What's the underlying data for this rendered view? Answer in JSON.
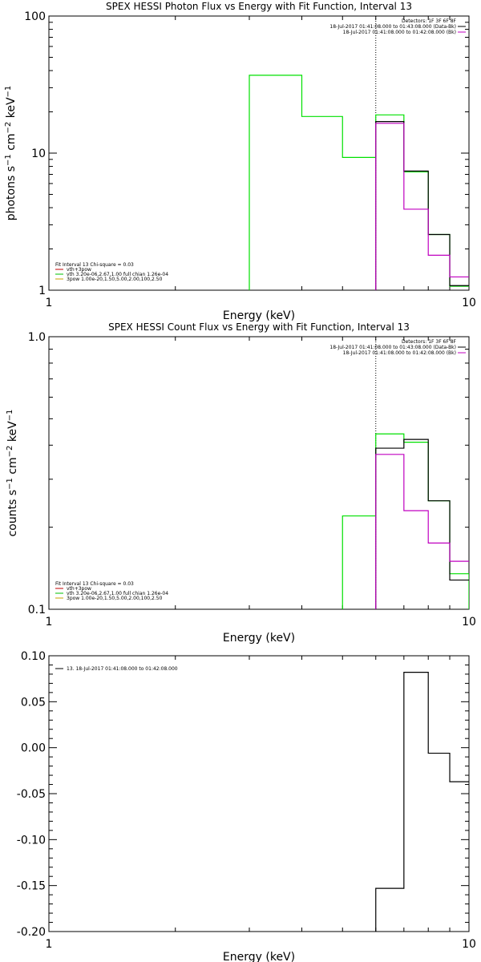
{
  "chart_data": [
    {
      "type": "line",
      "title": "SPEX HESSI Photon Flux vs Energy with Fit Function, Interval 13",
      "xlabel": "Energy (keV)",
      "ylabel_parts": [
        "photons s",
        "−1",
        " cm",
        "−2",
        " keV",
        "−1"
      ],
      "xscale": "log",
      "yscale": "log",
      "xlim": [
        1,
        10
      ],
      "ylim": [
        1,
        100
      ],
      "xticks": [
        {
          "v": 1,
          "label": "1"
        },
        {
          "v": 10,
          "label": "10"
        }
      ],
      "yticks": [
        {
          "v": 1,
          "label": "1"
        },
        {
          "v": 10,
          "label": "10"
        },
        {
          "v": 100,
          "label": "100"
        }
      ],
      "vline": 6.0,
      "legend_right": [
        {
          "text": "Detectors: 1F 3F 6F 8F",
          "color": ""
        },
        {
          "text": "18-Jul-2017 01:41:08.000 to 01:43:08.000 (Data-Bk)",
          "color": "#000000"
        },
        {
          "text": "18-Jul-2017 01:41:08.000 to 01:42:08.000 (Bk)",
          "color": "#c000c0"
        }
      ],
      "legend_left": [
        {
          "text": "Fit Interval 13   Chi-square = 0.03",
          "color": ""
        },
        {
          "text": "vth+3pow",
          "color": "#c00000"
        },
        {
          "text": "vth 3.20e-06,2.67,1.00  full chian 1.26e-04",
          "color": "#00c000"
        },
        {
          "text": "3pow 1.00e-20,1.50,5.00,2.00,100,2.50",
          "color": "#c8a000"
        }
      ],
      "series": [
        {
          "color": "#00e000",
          "edges": [
            3,
            4,
            5,
            6,
            7,
            8,
            9,
            10
          ],
          "values": [
            37,
            18.5,
            9.3,
            19,
            7.3,
            2.55,
            1.07
          ],
          "dropStart": true,
          "dropEnd": false
        },
        {
          "color": "#000000",
          "edges": [
            6,
            7,
            8,
            9,
            10
          ],
          "values": [
            17,
            7.4,
            2.55,
            1.08
          ],
          "dropStart": true,
          "dropEnd": false
        },
        {
          "color": "#c000c0",
          "edges": [
            6,
            7,
            8,
            9,
            10
          ],
          "values": [
            16.5,
            3.9,
            1.8,
            1.25
          ],
          "dropStart": true,
          "dropEnd": false
        }
      ]
    },
    {
      "type": "line",
      "title": "SPEX HESSI Count Flux vs Energy with Fit Function, Interval 13",
      "xlabel": "Energy (keV)",
      "ylabel_parts": [
        "counts s",
        "−1",
        " cm",
        "−2",
        " keV",
        "−1"
      ],
      "xscale": "log",
      "yscale": "log",
      "xlim": [
        1,
        10
      ],
      "ylim": [
        0.1,
        1.0
      ],
      "xticks": [
        {
          "v": 1,
          "label": "1"
        },
        {
          "v": 10,
          "label": "10"
        }
      ],
      "yticks": [
        {
          "v": 0.1,
          "label": "0.1"
        },
        {
          "v": 1.0,
          "label": "1.0"
        }
      ],
      "vline": 6.0,
      "legend_right": [
        {
          "text": "Detectors: 1F 3F 6F 8F",
          "color": ""
        },
        {
          "text": "18-Jul-2017 01:41:08.000 to 01:43:08.000 (Data-Bk)",
          "color": "#000000"
        },
        {
          "text": "18-Jul-2017 01:41:08.000 to 01:42:08.000 (Bk)",
          "color": "#c000c0"
        }
      ],
      "legend_left": [
        {
          "text": "Fit Interval 13   Chi-square = 0.03",
          "color": ""
        },
        {
          "text": "vth+3pow",
          "color": "#c00000"
        },
        {
          "text": "vth 3.20e-06,2.67,1.00  full chian 1.26e-04",
          "color": "#00c000"
        },
        {
          "text": "3pow 1.00e-20,1.50,5.00,2.00,100,2.50",
          "color": "#c8a000"
        }
      ],
      "series": [
        {
          "color": "#00e000",
          "edges": [
            5,
            6,
            7,
            8,
            9,
            10
          ],
          "values": [
            0.22,
            0.44,
            0.41,
            0.25,
            0.135
          ],
          "dropStart": true,
          "dropEnd": true
        },
        {
          "color": "#000000",
          "edges": [
            6,
            7,
            8,
            9,
            10
          ],
          "values": [
            0.39,
            0.42,
            0.25,
            0.128
          ],
          "dropStart": true,
          "dropEnd": false
        },
        {
          "color": "#c000c0",
          "edges": [
            6,
            7,
            8,
            9,
            10
          ],
          "values": [
            0.37,
            0.23,
            0.175,
            0.15
          ],
          "dropStart": true,
          "dropEnd": false
        }
      ]
    },
    {
      "type": "line",
      "title": "",
      "xlabel": "Energy (keV)",
      "ylabel_parts": [],
      "xscale": "log",
      "yscale": "linear",
      "xlim": [
        1,
        10
      ],
      "ylim": [
        -0.2,
        0.1
      ],
      "xticks": [
        {
          "v": 1,
          "label": "1"
        },
        {
          "v": 10,
          "label": "10"
        }
      ],
      "yticks": [
        {
          "v": 0.1,
          "label": "0.10"
        },
        {
          "v": 0.05,
          "label": "0.05"
        },
        {
          "v": 0.0,
          "label": "0.00"
        },
        {
          "v": -0.05,
          "label": "-0.05"
        },
        {
          "v": -0.1,
          "label": "-0.10"
        },
        {
          "v": -0.15,
          "label": "-0.15"
        },
        {
          "v": -0.2,
          "label": "-0.20"
        }
      ],
      "vline": null,
      "legend_right": [],
      "legend_left": [
        {
          "text": "13. 18-Jul-2017 01:41:08.000 to 01:42:08.000",
          "color": "#000000"
        }
      ],
      "series": [
        {
          "color": "#000000",
          "edges": [
            6,
            7,
            8,
            9,
            10
          ],
          "values": [
            -0.153,
            0.082,
            -0.006,
            -0.037
          ],
          "dropStart": true,
          "dropEnd": false
        }
      ]
    }
  ]
}
